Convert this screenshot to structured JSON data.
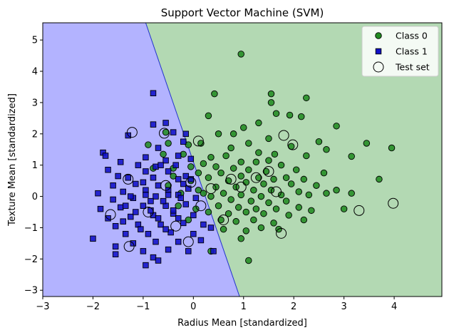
{
  "chart_data": {
    "type": "scatter",
    "title": "Support Vector Machine (SVM)",
    "xlabel": "Radius Mean [standardized]",
    "ylabel": "Texture Mean [standardized]",
    "xlim": [
      -3,
      4.95
    ],
    "ylim": [
      -3.2,
      5.55
    ],
    "xticks": [
      -3,
      -2,
      -1,
      0,
      1,
      2,
      3,
      4
    ],
    "yticks": [
      -3,
      -2,
      -1,
      0,
      1,
      2,
      3,
      4,
      5
    ],
    "grid": false,
    "legend_position": "top-right",
    "decision_boundary": {
      "points": [
        [
          -0.95,
          5.55
        ],
        [
          0.92,
          -3.2
        ]
      ],
      "region_colors": {
        "class_1": "#b3b3ff",
        "class_0": "#b3d9b3"
      },
      "boundary_color": "#2233cc"
    },
    "series": [
      {
        "name": "Class 0",
        "marker": "circle",
        "color": "#228b22",
        "points": [
          [
            0.95,
            4.55
          ],
          [
            0.42,
            3.28
          ],
          [
            1.55,
            3.28
          ],
          [
            0.3,
            2.58
          ],
          [
            1.55,
            3.0
          ],
          [
            2.25,
            3.15
          ],
          [
            1.65,
            2.65
          ],
          [
            1.92,
            2.6
          ],
          [
            2.15,
            2.55
          ],
          [
            1.3,
            2.35
          ],
          [
            2.85,
            2.25
          ],
          [
            1.0,
            2.2
          ],
          [
            0.8,
            2.0
          ],
          [
            0.5,
            2.0
          ],
          [
            1.5,
            1.85
          ],
          [
            2.5,
            1.75
          ],
          [
            3.45,
            1.7
          ],
          [
            1.1,
            1.7
          ],
          [
            0.75,
            1.55
          ],
          [
            1.95,
            1.6
          ],
          [
            2.65,
            1.5
          ],
          [
            3.95,
            1.55
          ],
          [
            1.3,
            1.4
          ],
          [
            1.62,
            1.35
          ],
          [
            2.25,
            1.3
          ],
          [
            3.15,
            1.28
          ],
          [
            0.35,
            1.25
          ],
          [
            0.65,
            1.3
          ],
          [
            0.95,
            1.1
          ],
          [
            1.25,
            1.1
          ],
          [
            1.5,
            1.15
          ],
          [
            1.75,
            1.0
          ],
          [
            0.2,
            1.05
          ],
          [
            0.45,
            0.95
          ],
          [
            0.8,
            0.9
          ],
          [
            1.1,
            0.85
          ],
          [
            1.45,
            0.8
          ],
          [
            2.05,
            0.85
          ],
          [
            2.6,
            0.75
          ],
          [
            0.55,
            0.75
          ],
          [
            0.95,
            0.65
          ],
          [
            1.3,
            0.6
          ],
          [
            1.6,
            0.55
          ],
          [
            1.85,
            0.6
          ],
          [
            2.2,
            0.55
          ],
          [
            0.3,
            0.6
          ],
          [
            0.7,
            0.5
          ],
          [
            1.05,
            0.45
          ],
          [
            1.4,
            0.4
          ],
          [
            1.95,
            0.4
          ],
          [
            2.45,
            0.35
          ],
          [
            3.7,
            0.55
          ],
          [
            0.45,
            0.3
          ],
          [
            0.85,
            0.3
          ],
          [
            1.2,
            0.2
          ],
          [
            1.55,
            0.2
          ],
          [
            2.1,
            0.15
          ],
          [
            2.85,
            0.2
          ],
          [
            3.15,
            0.1
          ],
          [
            0.6,
            0.1
          ],
          [
            0.95,
            0.05
          ],
          [
            1.35,
            0.0
          ],
          [
            1.75,
            0.05
          ],
          [
            2.3,
            0.05
          ],
          [
            2.65,
            0.1
          ],
          [
            0.35,
            0.0
          ],
          [
            0.75,
            -0.1
          ],
          [
            1.15,
            -0.15
          ],
          [
            1.5,
            -0.2
          ],
          [
            1.85,
            -0.15
          ],
          [
            0.5,
            -0.3
          ],
          [
            0.9,
            -0.35
          ],
          [
            1.25,
            -0.4
          ],
          [
            1.65,
            -0.4
          ],
          [
            2.1,
            -0.35
          ],
          [
            2.35,
            -0.45
          ],
          [
            0.3,
            -0.5
          ],
          [
            0.7,
            -0.55
          ],
          [
            1.05,
            -0.5
          ],
          [
            1.4,
            -0.55
          ],
          [
            1.9,
            -0.6
          ],
          [
            0.55,
            -0.75
          ],
          [
            0.85,
            -0.8
          ],
          [
            1.2,
            -0.75
          ],
          [
            1.6,
            -0.85
          ],
          [
            2.2,
            -0.75
          ],
          [
            3.0,
            -0.4
          ],
          [
            0.6,
            -1.05
          ],
          [
            1.05,
            -1.1
          ],
          [
            1.35,
            -1.0
          ],
          [
            1.7,
            -1.05
          ],
          [
            0.95,
            -1.35
          ],
          [
            0.35,
            -1.75
          ],
          [
            1.1,
            -2.05
          ],
          [
            -0.55,
            2.05
          ],
          [
            -0.5,
            1.7
          ],
          [
            -0.9,
            1.65
          ],
          [
            -0.1,
            1.65
          ],
          [
            -0.6,
            1.35
          ],
          [
            -0.2,
            1.35
          ],
          [
            0.15,
            1.7
          ],
          [
            -0.4,
            0.9
          ],
          [
            -0.8,
            0.9
          ],
          [
            -0.05,
            0.95
          ],
          [
            0.1,
            0.75
          ],
          [
            -0.4,
            0.65
          ],
          [
            -0.05,
            0.5
          ],
          [
            -0.5,
            0.35
          ],
          [
            0.1,
            0.2
          ],
          [
            -0.25,
            0.1
          ],
          [
            0.2,
            0.1
          ],
          [
            -0.3,
            -0.3
          ],
          [
            0.05,
            -0.4
          ],
          [
            -0.1,
            -0.75
          ]
        ]
      },
      {
        "name": "Class 1",
        "marker": "square",
        "color": "#1010c8",
        "points": [
          [
            -0.8,
            3.3
          ],
          [
            -0.15,
            2.0
          ],
          [
            -0.8,
            2.3
          ],
          [
            -0.55,
            2.35
          ],
          [
            -0.4,
            2.05
          ],
          [
            -1.8,
            1.4
          ],
          [
            -1.75,
            1.3
          ],
          [
            -1.3,
            1.95
          ],
          [
            -0.7,
            1.55
          ],
          [
            -0.2,
            1.75
          ],
          [
            -0.3,
            1.3
          ],
          [
            -0.05,
            1.2
          ],
          [
            -0.95,
            1.25
          ],
          [
            -0.55,
            1.15
          ],
          [
            -1.45,
            1.1
          ],
          [
            -1.1,
            1.0
          ],
          [
            -0.75,
            0.95
          ],
          [
            -0.35,
            1.0
          ],
          [
            -1.7,
            0.85
          ],
          [
            -0.95,
            0.8
          ],
          [
            -0.5,
            0.8
          ],
          [
            -1.3,
            0.6
          ],
          [
            -0.8,
            0.6
          ],
          [
            -0.3,
            0.55
          ],
          [
            -1.6,
            0.35
          ],
          [
            -1.15,
            0.4
          ],
          [
            -0.7,
            0.35
          ],
          [
            -0.2,
            0.4
          ],
          [
            -1.9,
            0.1
          ],
          [
            -1.4,
            0.15
          ],
          [
            -0.95,
            0.2
          ],
          [
            -0.5,
            0.2
          ],
          [
            -0.1,
            0.25
          ],
          [
            -1.6,
            -0.1
          ],
          [
            -1.2,
            -0.05
          ],
          [
            -0.75,
            0.0
          ],
          [
            -0.3,
            0.05
          ],
          [
            -1.85,
            -0.4
          ],
          [
            -1.45,
            -0.35
          ],
          [
            -1.0,
            -0.3
          ],
          [
            -0.55,
            -0.3
          ],
          [
            -0.15,
            -0.25
          ],
          [
            -1.7,
            -0.7
          ],
          [
            -1.25,
            -0.65
          ],
          [
            -0.8,
            -0.6
          ],
          [
            -0.4,
            -0.55
          ],
          [
            0.0,
            -0.6
          ],
          [
            -1.55,
            -0.95
          ],
          [
            -1.1,
            -0.9
          ],
          [
            -0.65,
            -0.9
          ],
          [
            -0.2,
            -0.85
          ],
          [
            0.2,
            -0.9
          ],
          [
            -1.35,
            -1.2
          ],
          [
            -0.9,
            -1.2
          ],
          [
            -0.45,
            -1.15
          ],
          [
            0.0,
            -1.2
          ],
          [
            0.35,
            -1.0
          ],
          [
            -1.2,
            -1.5
          ],
          [
            -0.75,
            -1.45
          ],
          [
            -0.3,
            -1.45
          ],
          [
            0.15,
            -1.4
          ],
          [
            -1.55,
            -1.6
          ],
          [
            -1.0,
            -1.75
          ],
          [
            -0.5,
            -1.7
          ],
          [
            -0.1,
            -1.75
          ],
          [
            0.4,
            -1.75
          ],
          [
            -1.55,
            -1.85
          ],
          [
            -0.8,
            -1.95
          ],
          [
            -0.95,
            -2.2
          ],
          [
            -0.7,
            -2.05
          ],
          [
            -2.0,
            -1.35
          ],
          [
            -1.35,
            -0.3
          ],
          [
            -0.85,
            -0.45
          ],
          [
            -0.6,
            -0.15
          ],
          [
            -0.95,
            0.05
          ],
          [
            -0.25,
            -0.05
          ],
          [
            -1.05,
            -1.05
          ],
          [
            -0.55,
            -1.05
          ],
          [
            -0.3,
            -0.7
          ],
          [
            -1.4,
            -0.8
          ],
          [
            -0.15,
            0.65
          ],
          [
            -0.65,
            1.0
          ],
          [
            -1.5,
            0.65
          ],
          [
            -1.0,
            0.45
          ],
          [
            -0.4,
            -0.45
          ],
          [
            -0.7,
            -0.7
          ],
          [
            -1.15,
            -0.5
          ],
          [
            -0.85,
            -0.15
          ],
          [
            -0.5,
            0.05
          ],
          [
            -1.25,
            0.0
          ],
          [
            0.05,
            -0.05
          ],
          [
            -0.05,
            0.55
          ]
        ]
      },
      {
        "name": "Test set",
        "marker": "hollow-circle",
        "color": "#000000",
        "points": [
          [
            -1.22,
            2.05
          ],
          [
            -0.58,
            2.02
          ],
          [
            0.1,
            1.77
          ],
          [
            1.8,
            1.95
          ],
          [
            1.98,
            1.65
          ],
          [
            -1.3,
            0.55
          ],
          [
            0.75,
            0.55
          ],
          [
            1.25,
            0.6
          ],
          [
            1.5,
            0.8
          ],
          [
            3.3,
            -0.45
          ],
          [
            3.98,
            -0.22
          ],
          [
            1.75,
            -1.18
          ],
          [
            0.6,
            -0.75
          ],
          [
            -1.65,
            -0.58
          ],
          [
            -1.28,
            -1.6
          ],
          [
            0.95,
            0.3
          ],
          [
            1.65,
            0.15
          ],
          [
            -0.05,
            0.45
          ],
          [
            0.15,
            -0.3
          ],
          [
            -0.35,
            -0.95
          ],
          [
            -0.9,
            -0.5
          ],
          [
            -0.55,
            0.35
          ],
          [
            0.35,
            0.25
          ],
          [
            -0.1,
            -1.45
          ]
        ]
      }
    ]
  }
}
